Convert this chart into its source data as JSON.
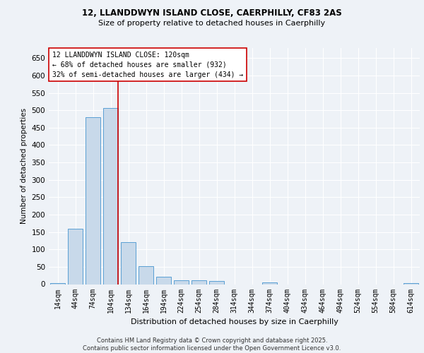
{
  "title_line1": "12, LLANDDWYN ISLAND CLOSE, CAERPHILLY, CF83 2AS",
  "title_line2": "Size of property relative to detached houses in Caerphilly",
  "xlabel": "Distribution of detached houses by size in Caerphilly",
  "ylabel": "Number of detached properties",
  "categories": [
    "14sqm",
    "44sqm",
    "74sqm",
    "104sqm",
    "134sqm",
    "164sqm",
    "194sqm",
    "224sqm",
    "254sqm",
    "284sqm",
    "314sqm",
    "344sqm",
    "374sqm",
    "404sqm",
    "434sqm",
    "464sqm",
    "494sqm",
    "524sqm",
    "554sqm",
    "584sqm",
    "614sqm"
  ],
  "values": [
    3,
    160,
    480,
    507,
    120,
    52,
    22,
    12,
    12,
    9,
    0,
    0,
    5,
    0,
    0,
    0,
    0,
    0,
    0,
    0,
    4
  ],
  "bar_color": "#c8d9ea",
  "bar_edge_color": "#5a9fd4",
  "red_line_label": "12 LLANDDWYN ISLAND CLOSE: 120sqm",
  "annotation_line2": "← 68% of detached houses are smaller (932)",
  "annotation_line3": "32% of semi-detached houses are larger (434) →",
  "ylim": [
    0,
    680
  ],
  "yticks": [
    0,
    50,
    100,
    150,
    200,
    250,
    300,
    350,
    400,
    450,
    500,
    550,
    600,
    650
  ],
  "footnote_line1": "Contains HM Land Registry data © Crown copyright and database right 2025.",
  "footnote_line2": "Contains public sector information licensed under the Open Government Licence v3.0.",
  "bg_color": "#eef2f7",
  "plot_bg_color": "#eef2f7",
  "grid_color": "#ffffff",
  "annotation_box_color": "#ffffff",
  "annotation_box_edge": "#cc0000"
}
